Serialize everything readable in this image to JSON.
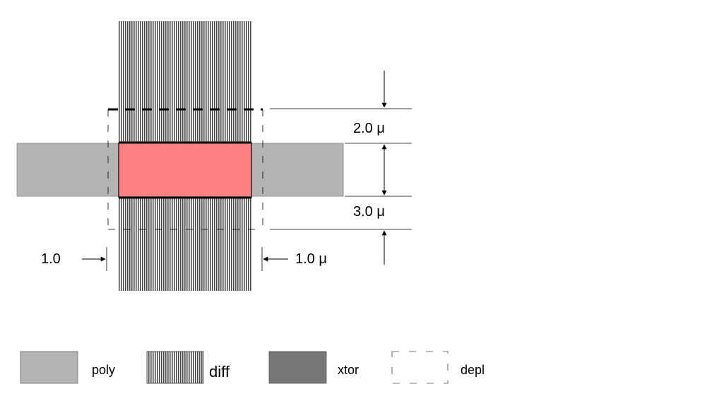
{
  "colors": {
    "poly": "#b4b4b4",
    "diff_stripe": "#4a4a4a",
    "diff_gap": "#ffffff",
    "xtor_legend": "#777777",
    "channel": "#ff8080",
    "line": "#000000"
  },
  "dimensions": {
    "top_extension": "2.0 μ",
    "bottom_extension": "3.0 μ",
    "left_overlap": "1.0",
    "right_overlap": "1.0 μ"
  },
  "legend": {
    "poly": "poly",
    "diff": "diff",
    "xtor": "xtor",
    "depl": "depl"
  }
}
